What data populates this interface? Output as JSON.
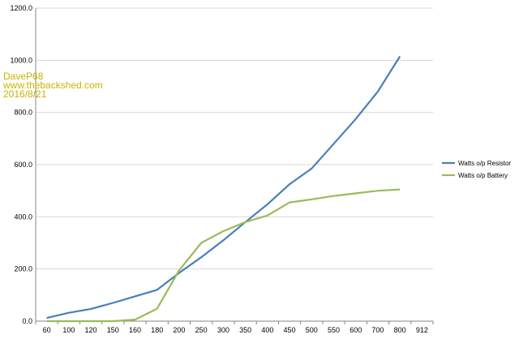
{
  "watermark": {
    "line1": "DaveP68",
    "line2": "www.thebackshed.com",
    "line3": "2016/8/21"
  },
  "chart_data": {
    "type": "line",
    "title": "",
    "xlabel": "",
    "ylabel": "",
    "categories": [
      "60",
      "100",
      "120",
      "150",
      "160",
      "180",
      "200",
      "250",
      "300",
      "350",
      "400",
      "450",
      "500",
      "550",
      "600",
      "700",
      "800",
      "912"
    ],
    "ylim": [
      0,
      1200
    ],
    "yticks": [
      "0.0",
      "200.0",
      "400.0",
      "600.0",
      "800.0",
      "1000.0",
      "1200.0"
    ],
    "grid": true,
    "legend_position": "right",
    "series": [
      {
        "name": "Watts o/p Resistor",
        "color": "#4a7ebb",
        "values": [
          12,
          32,
          47,
          70,
          95,
          120,
          185,
          245,
          310,
          380,
          448,
          525,
          585,
          680,
          775,
          880,
          1015,
          null
        ]
      },
      {
        "name": "Watts o/p Battery",
        "color": "#9bbb59",
        "values": [
          0,
          0,
          0,
          0,
          6,
          48,
          195,
          300,
          345,
          380,
          405,
          455,
          467,
          480,
          490,
          500,
          505,
          null
        ]
      }
    ]
  }
}
